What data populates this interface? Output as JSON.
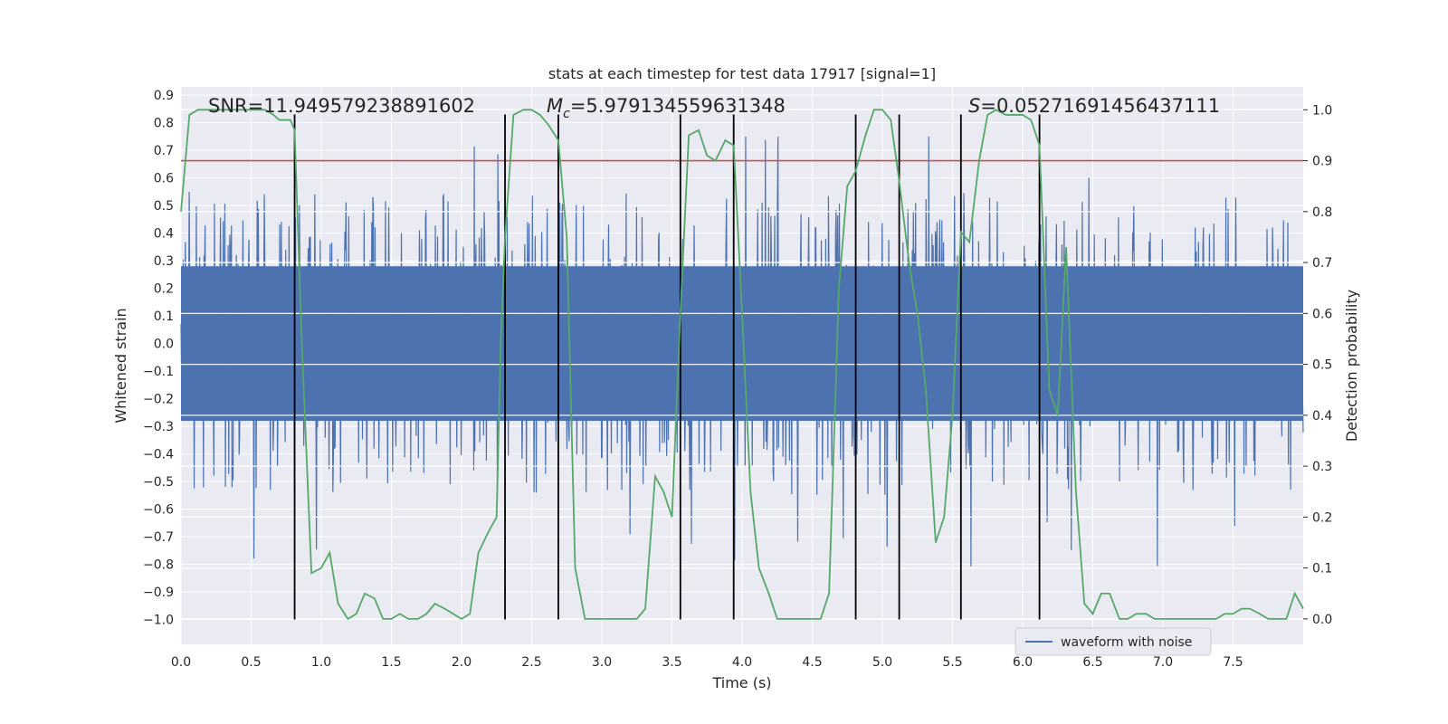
{
  "chart_data": {
    "type": "line",
    "title": "stats at each timestep for test data 17917 [signal=1]",
    "xlabel": "Time (s)",
    "ylabel": "Whitened strain",
    "y2label": "Detection probability",
    "xlim": [
      0.0,
      8.0
    ],
    "ylim": [
      -1.09,
      0.93
    ],
    "y2lim": [
      -0.05,
      1.045
    ],
    "x_ticks": [
      0.0,
      0.5,
      1.0,
      1.5,
      2.0,
      2.5,
      3.0,
      3.5,
      4.0,
      4.5,
      5.0,
      5.5,
      6.0,
      6.5,
      7.0,
      7.5
    ],
    "x_tick_labels": [
      "0.0",
      "0.5",
      "1.0",
      "1.5",
      "2.0",
      "2.5",
      "3.0",
      "3.5",
      "4.0",
      "4.5",
      "5.0",
      "5.5",
      "6.0",
      "6.5",
      "7.0",
      "7.5"
    ],
    "y_ticks": [
      0.9,
      0.8,
      0.7,
      0.6,
      0.5,
      0.4,
      0.3,
      0.2,
      0.1,
      0.0,
      -0.1,
      -0.2,
      -0.3,
      -0.4,
      -0.5,
      -0.6,
      -0.7,
      -0.8,
      -0.9,
      -1.0
    ],
    "y_tick_labels": [
      "0.9",
      "0.8",
      "0.7",
      "0.6",
      "0.5",
      "0.4",
      "0.3",
      "0.2",
      "0.1",
      "0.0",
      "−0.1",
      "−0.2",
      "−0.3",
      "−0.4",
      "−0.5",
      "−0.6",
      "−0.7",
      "−0.8",
      "−0.9",
      "−1.0"
    ],
    "y2_ticks": [
      1.0,
      0.9,
      0.8,
      0.7,
      0.6,
      0.5,
      0.4,
      0.3,
      0.2,
      0.1,
      0.0
    ],
    "y2_tick_labels": [
      "1.0",
      "0.9",
      "0.8",
      "0.7",
      "0.6",
      "0.5",
      "0.4",
      "0.3",
      "0.2",
      "0.1",
      "0.0"
    ],
    "annotations": {
      "snr": "SNR=11.949579238891602",
      "mc_symbol": "M",
      "mc_sub": "c",
      "mc_value": "=5.979134559631348",
      "s_symbol": "S",
      "s_value": "=0.05271691456437111"
    },
    "legend": {
      "label": "waveform with noise",
      "position": "lower right"
    },
    "threshold": {
      "value": 0.9,
      "axis": "right",
      "color": "#c44e52"
    },
    "vertical_lines": [
      0.81,
      2.31,
      2.69,
      3.56,
      3.94,
      4.81,
      5.12,
      5.56,
      6.12
    ],
    "vertical_lines_range": [
      -1.0,
      0.83
    ],
    "waveform_noise": {
      "name": "waveform with noise",
      "color": "#4c72b0",
      "samples": 2048,
      "core_amplitude": 0.28,
      "typical_peak": [
        0.35,
        0.55
      ],
      "peak_max": 0.75,
      "trough_min": -1.0
    },
    "detection_probability": {
      "color": "#55a868",
      "x": [
        0.0,
        0.06,
        0.12,
        0.2,
        0.3,
        0.4,
        0.5,
        0.6,
        0.66,
        0.7,
        0.74,
        0.78,
        0.81,
        0.86,
        0.93,
        1.0,
        1.06,
        1.12,
        1.19,
        1.25,
        1.31,
        1.38,
        1.44,
        1.5,
        1.56,
        1.62,
        1.69,
        1.75,
        1.81,
        1.88,
        1.94,
        2.0,
        2.06,
        2.12,
        2.19,
        2.25,
        2.28,
        2.31,
        2.37,
        2.44,
        2.5,
        2.56,
        2.62,
        2.69,
        2.75,
        2.81,
        2.88,
        2.94,
        3.0,
        3.06,
        3.12,
        3.19,
        3.25,
        3.31,
        3.38,
        3.44,
        3.5,
        3.56,
        3.62,
        3.69,
        3.75,
        3.81,
        3.88,
        3.94,
        4.0,
        4.06,
        4.12,
        4.19,
        4.25,
        4.31,
        4.38,
        4.44,
        4.5,
        4.56,
        4.62,
        4.69,
        4.75,
        4.81,
        4.88,
        4.94,
        5.0,
        5.06,
        5.12,
        5.19,
        5.25,
        5.31,
        5.38,
        5.44,
        5.5,
        5.56,
        5.62,
        5.69,
        5.75,
        5.81,
        5.88,
        5.94,
        6.0,
        6.06,
        6.12,
        6.19,
        6.25,
        6.31,
        6.38,
        6.44,
        6.5,
        6.56,
        6.62,
        6.69,
        6.75,
        6.81,
        6.88,
        6.94,
        7.0,
        7.06,
        7.12,
        7.19,
        7.25,
        7.31,
        7.38,
        7.44,
        7.5,
        7.56,
        7.62,
        7.69,
        7.75,
        7.81,
        7.88,
        7.94,
        8.0
      ],
      "y": [
        0.8,
        0.99,
        1.0,
        1.0,
        1.0,
        1.0,
        1.0,
        1.0,
        0.99,
        0.98,
        0.98,
        0.98,
        0.96,
        0.55,
        0.09,
        0.1,
        0.13,
        0.03,
        0.0,
        0.01,
        0.05,
        0.04,
        0.0,
        0.0,
        0.01,
        0.0,
        0.0,
        0.01,
        0.03,
        0.02,
        0.01,
        0.0,
        0.01,
        0.13,
        0.17,
        0.2,
        0.55,
        0.75,
        0.99,
        1.0,
        1.0,
        0.99,
        0.97,
        0.94,
        0.75,
        0.1,
        0.0,
        0.0,
        0.0,
        0.0,
        0.0,
        0.0,
        0.0,
        0.02,
        0.28,
        0.25,
        0.2,
        0.6,
        0.95,
        0.96,
        0.91,
        0.9,
        0.94,
        0.93,
        0.6,
        0.25,
        0.1,
        0.05,
        0.0,
        0.0,
        0.0,
        0.0,
        0.0,
        0.0,
        0.05,
        0.65,
        0.85,
        0.88,
        0.95,
        1.0,
        1.0,
        0.98,
        0.86,
        0.7,
        0.6,
        0.45,
        0.15,
        0.2,
        0.4,
        0.76,
        0.74,
        0.9,
        0.99,
        1.0,
        0.99,
        0.99,
        0.99,
        0.98,
        0.93,
        0.45,
        0.4,
        0.73,
        0.25,
        0.03,
        0.01,
        0.05,
        0.05,
        0.0,
        0.0,
        0.01,
        0.01,
        0.0,
        0.0,
        0.0,
        0.0,
        0.0,
        0.0,
        0.0,
        0.0,
        0.01,
        0.01,
        0.02,
        0.02,
        0.01,
        0.0,
        0.0,
        0.0,
        0.05,
        0.02
      ]
    }
  }
}
